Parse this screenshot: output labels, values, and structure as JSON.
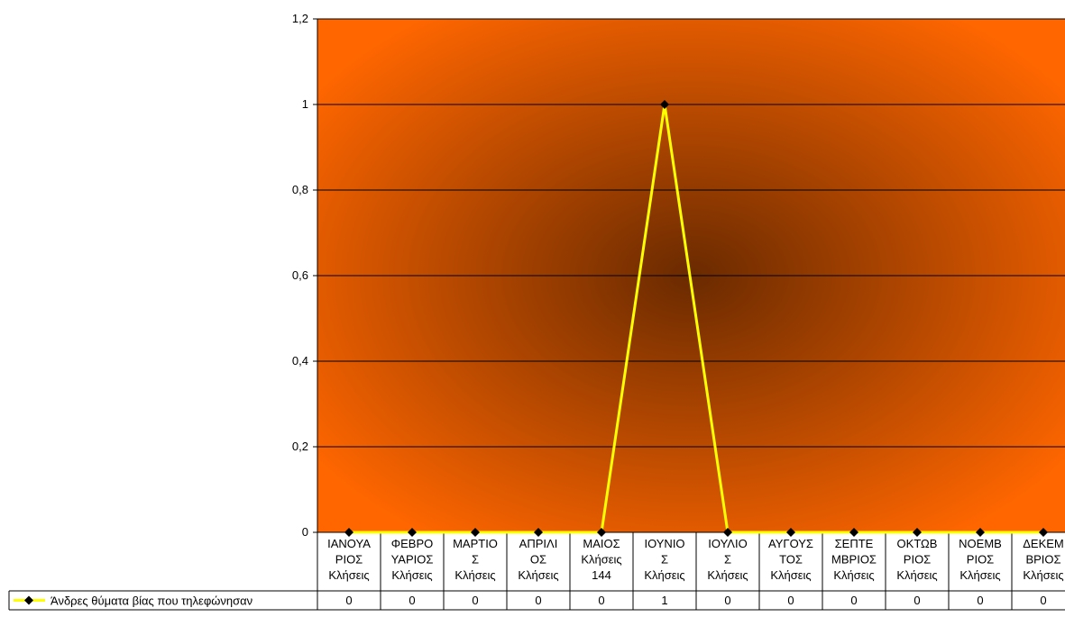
{
  "chart_data": {
    "type": "line",
    "categories": [
      [
        "ΙΑΝΟΥΑ",
        "ΡΙΟΣ",
        "Κλήσεις"
      ],
      [
        "ΦΕΒΡΟ",
        "ΥΑΡΙΟΣ",
        "Κλήσεις"
      ],
      [
        "ΜΑΡΤΙΟ",
        "Σ",
        "Κλήσεις"
      ],
      [
        "ΑΠΡΙΛΙ",
        "ΟΣ",
        "Κλήσεις"
      ],
      [
        "ΜΑΙΟΣ",
        "Κλήσεις",
        "144"
      ],
      [
        "ΙΟΥΝΙΟ",
        "Σ",
        "Κλήσεις"
      ],
      [
        "ΙΟΥΛΙΟ",
        "Σ",
        "Κλήσεις"
      ],
      [
        "ΑΥΓΟΥΣ",
        "ΤΟΣ",
        "Κλήσεις"
      ],
      [
        "ΣΕΠΤΕ",
        "ΜΒΡΙΟΣ",
        "Κλήσεις"
      ],
      [
        "ΟΚΤΩΒ",
        "ΡΙΟΣ",
        "Κλήσεις"
      ],
      [
        "ΝΟΕΜΒ",
        "ΡΙΟΣ",
        "Κλήσεις"
      ],
      [
        "ΔΕΚΕΜ",
        "ΒΡΙΟΣ",
        "Κλήσεις"
      ]
    ],
    "series": [
      {
        "name": "Άνδρες θύματα βίας που τηλεφώνησαν",
        "values": [
          0,
          0,
          0,
          0,
          0,
          1,
          0,
          0,
          0,
          0,
          0,
          0
        ],
        "color": "#ffff00",
        "marker_color": "#000000"
      }
    ],
    "ylim": [
      0,
      1.2
    ],
    "yticks": [
      "0",
      "0,2",
      "0,4",
      "0,6",
      "0,8",
      "1",
      "1,2"
    ],
    "grid": true,
    "data_table": true,
    "legend": "data-table-left",
    "plot_fill_outer": "#ff6600",
    "plot_fill_center": "#6a2a00",
    "gridline_color": "#000000"
  }
}
